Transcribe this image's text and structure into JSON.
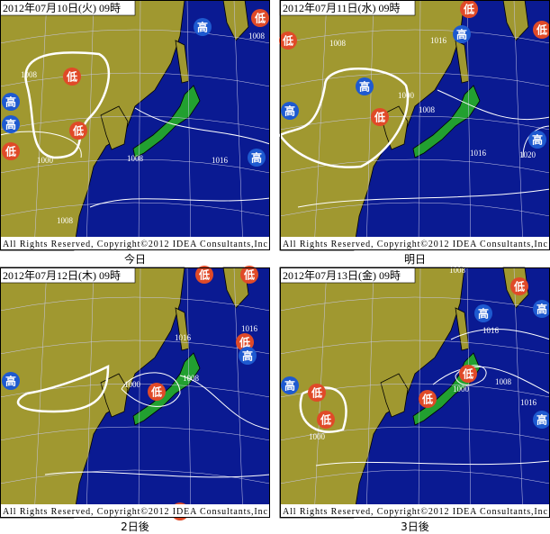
{
  "panels": [
    {
      "date": "2012年07月10日(火) 09時",
      "copyright": "All Rights Reserved, Copyright©2012 IDEA Consultants,Inc",
      "caption": "今日",
      "markers": [
        "低",
        "低",
        "低",
        "低",
        "高",
        "高",
        "高",
        "高"
      ],
      "isobars": [
        "1008",
        "1008",
        "1000",
        "1008",
        "1016",
        "1008"
      ]
    },
    {
      "date": "2012年07月11日(水) 09時",
      "copyright": "All Rights Reserved, Copyright©2012 IDEA Consultants,Inc",
      "caption": "明日",
      "markers": [
        "低",
        "低",
        "低",
        "低",
        "高",
        "高",
        "高",
        "高"
      ],
      "isobars": [
        "1008",
        "1016",
        "1000",
        "1008",
        "1016",
        "1020"
      ]
    },
    {
      "date": "2012年07月12日(木) 09時",
      "copyright": "All Rights Reserved, Copyright©2012 IDEA Consultants,Inc",
      "caption": "2日後",
      "markers": [
        "低",
        "低",
        "低",
        "低",
        "低",
        "高",
        "高"
      ],
      "isobars": [
        "1016",
        "1016",
        "1000",
        "1008"
      ]
    },
    {
      "date": "2012年07月13日(金) 09時",
      "copyright": "All Rights Reserved, Copyright©2012 IDEA Consultants,Inc",
      "caption": "3日後",
      "markers": [
        "低",
        "低",
        "低",
        "低",
        "低",
        "高",
        "高",
        "高",
        "高"
      ],
      "isobars": [
        "1008",
        "1016",
        "1000",
        "1008",
        "1016",
        "1000"
      ]
    }
  ]
}
